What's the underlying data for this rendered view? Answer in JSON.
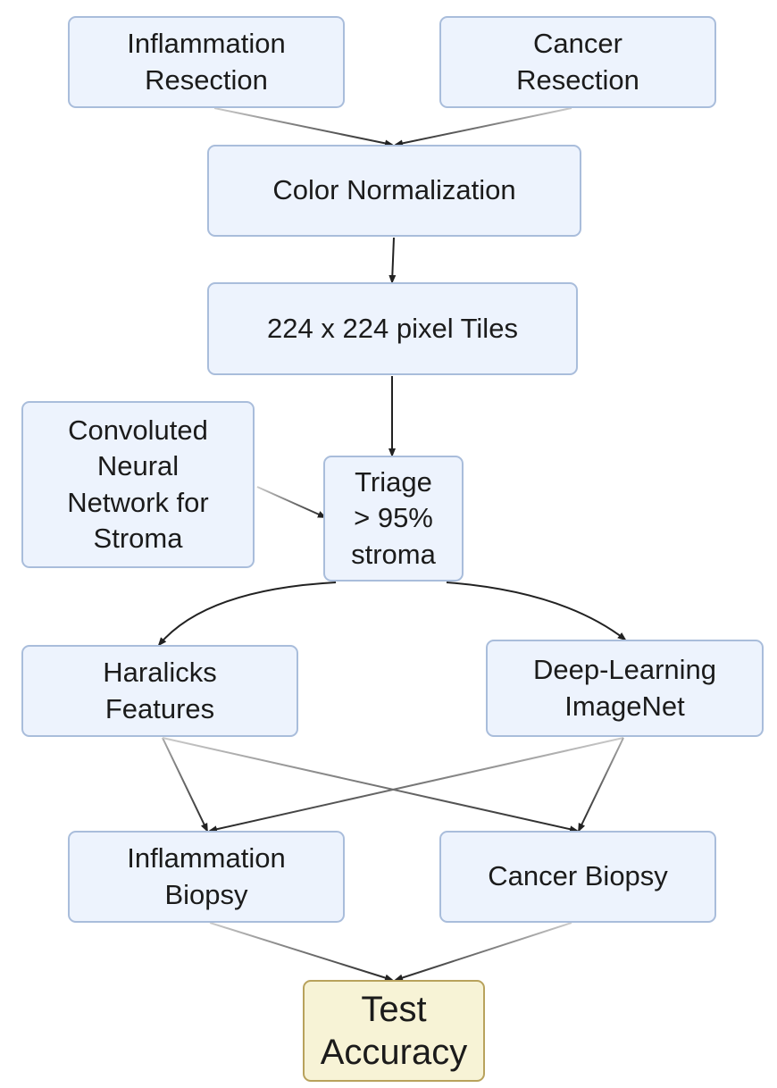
{
  "nodes": {
    "inflammation_resection": "Inflammation\nResection",
    "cancer_resection": "Cancer\nResection",
    "color_normalization": "Color Normalization",
    "pixel_tiles": "224 x 224 pixel Tiles",
    "cnn_stroma": "Convoluted\nNeural\nNetwork for\nStroma",
    "triage": "Triage\n> 95%\nstroma",
    "haralicks": "Haralicks\nFeatures",
    "deep_learning": "Deep-Learning\nImageNet",
    "inflammation_biopsy": "Inflammation\nBiopsy",
    "cancer_biopsy": "Cancer Biopsy",
    "test_accuracy": "Test\nAccuracy"
  },
  "colors": {
    "node_fill": "#edf3fd",
    "node_border": "#a9bddb",
    "final_fill": "#f7f3d6",
    "final_border": "#b8a25c",
    "arrow": "#222222"
  }
}
